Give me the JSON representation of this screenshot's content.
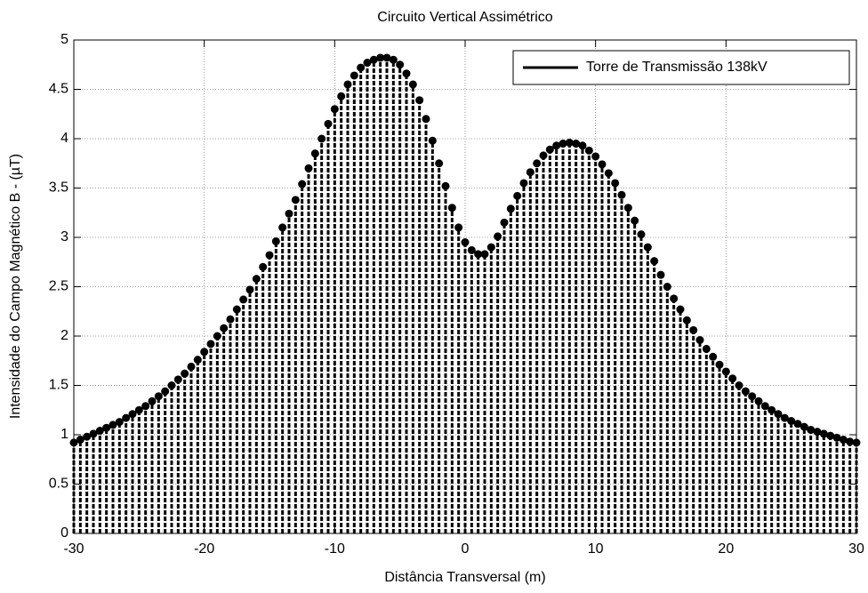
{
  "chart_data": {
    "type": "stem",
    "title": "Circuito Vertical Assimétrico",
    "xlabel": "Distância Transversal (m)",
    "ylabel": "Intensidade do Campo Magnético B - (µT)",
    "xlim": [
      -30,
      30
    ],
    "xticks": [
      -30,
      -20,
      -10,
      0,
      10,
      20,
      30
    ],
    "ylim": [
      0,
      5
    ],
    "yticks": [
      0,
      0.5,
      1,
      1.5,
      2,
      2.5,
      3,
      3.5,
      4,
      4.5,
      5
    ],
    "grid": true,
    "legend": "top-right",
    "x": [
      -30,
      -29.5,
      -29,
      -28.5,
      -28,
      -27.5,
      -27,
      -26.5,
      -26,
      -25.5,
      -25,
      -24.5,
      -24,
      -23.5,
      -23,
      -22.5,
      -22,
      -21.5,
      -21,
      -20.5,
      -20,
      -19.5,
      -19,
      -18.5,
      -18,
      -17.5,
      -17,
      -16.5,
      -16,
      -15.5,
      -15,
      -14.5,
      -14,
      -13.5,
      -13,
      -12.5,
      -12,
      -11.5,
      -11,
      -10.5,
      -10,
      -9.5,
      -9,
      -8.5,
      -8,
      -7.5,
      -7,
      -6.5,
      -6,
      -5.5,
      -5,
      -4.5,
      -4,
      -3.5,
      -3,
      -2.5,
      -2,
      -1.5,
      -1,
      -0.5,
      0,
      0.5,
      1,
      1.5,
      2,
      2.5,
      3,
      3.5,
      4,
      4.5,
      5,
      5.5,
      6,
      6.5,
      7,
      7.5,
      8,
      8.5,
      9,
      9.5,
      10,
      10.5,
      11,
      11.5,
      12,
      12.5,
      13,
      13.5,
      14,
      14.5,
      15,
      15.5,
      16,
      16.5,
      17,
      17.5,
      18,
      18.5,
      19,
      19.5,
      20,
      20.5,
      21,
      21.5,
      22,
      22.5,
      23,
      23.5,
      24,
      24.5,
      25,
      25.5,
      26,
      26.5,
      27,
      27.5,
      28,
      28.5,
      29,
      29.5,
      30
    ],
    "series": [
      {
        "name": "Torre de Transmissão 138kV",
        "color": "#000000",
        "values": [
          0.92,
          0.95,
          0.98,
          1.01,
          1.04,
          1.07,
          1.1,
          1.13,
          1.17,
          1.21,
          1.25,
          1.29,
          1.34,
          1.39,
          1.44,
          1.5,
          1.56,
          1.62,
          1.69,
          1.76,
          1.84,
          1.92,
          2.0,
          2.08,
          2.17,
          2.27,
          2.37,
          2.47,
          2.58,
          2.7,
          2.82,
          2.96,
          3.1,
          3.24,
          3.38,
          3.54,
          3.7,
          3.85,
          4.0,
          4.15,
          4.3,
          4.43,
          4.55,
          4.64,
          4.72,
          4.77,
          4.8,
          4.82,
          4.82,
          4.8,
          4.75,
          4.66,
          4.55,
          4.39,
          4.2,
          3.98,
          3.75,
          3.52,
          3.3,
          3.1,
          2.95,
          2.87,
          2.83,
          2.83,
          2.9,
          3.01,
          3.15,
          3.29,
          3.42,
          3.55,
          3.66,
          3.75,
          3.83,
          3.89,
          3.93,
          3.95,
          3.96,
          3.95,
          3.93,
          3.88,
          3.82,
          3.74,
          3.65,
          3.55,
          3.43,
          3.3,
          3.17,
          3.03,
          2.9,
          2.76,
          2.62,
          2.5,
          2.38,
          2.27,
          2.16,
          2.06,
          1.96,
          1.87,
          1.79,
          1.71,
          1.64,
          1.57,
          1.5,
          1.44,
          1.39,
          1.34,
          1.29,
          1.25,
          1.21,
          1.17,
          1.14,
          1.11,
          1.08,
          1.05,
          1.03,
          1.01,
          0.99,
          0.97,
          0.95,
          0.93,
          0.92
        ]
      }
    ]
  }
}
